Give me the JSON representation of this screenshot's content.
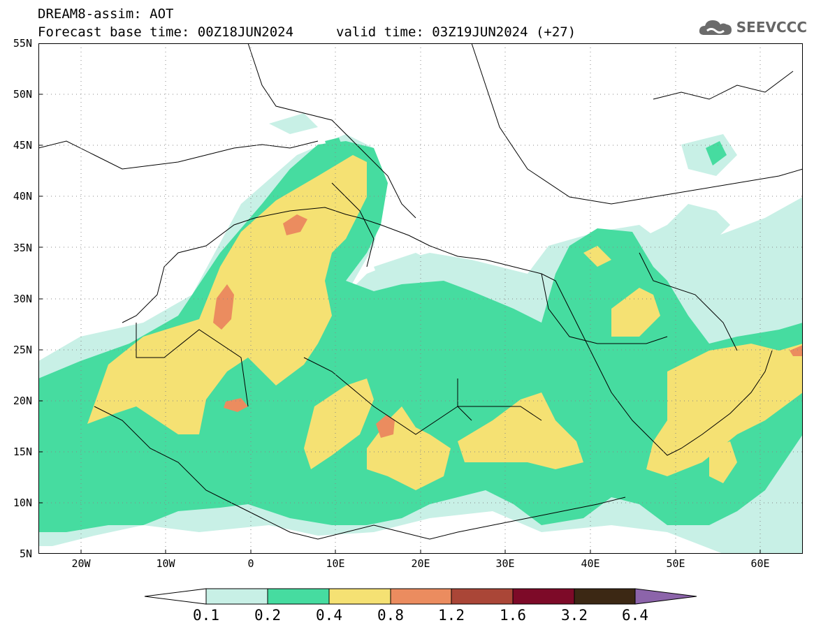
{
  "header": {
    "line1": "DREAM8-assim: AOT",
    "line2": "Forecast base time: 00Z18JUN2024",
    "valid": "valid time: 03Z19JUN2024 (+27)"
  },
  "logo": {
    "text": "SEEVCCC",
    "icon": "cloud-icon"
  },
  "map": {
    "lon_range": [
      -25,
      65
    ],
    "lat_range": [
      5,
      55
    ],
    "grid": true,
    "lat_ticks": [
      "55N",
      "50N",
      "45N",
      "40N",
      "35N",
      "30N",
      "25N",
      "20N",
      "15N",
      "10N",
      "5N"
    ],
    "lon_ticks": [
      "20W",
      "10W",
      "0",
      "10E",
      "20E",
      "30E",
      "40E",
      "50E",
      "60E"
    ]
  },
  "colorbar": {
    "labels": [
      "0.1",
      "0.2",
      "0.4",
      "0.8",
      "1.2",
      "1.6",
      "3.2",
      "6.4"
    ],
    "colors": {
      "lt01": "#ffffff",
      "c01_02": "#c8f0e6",
      "c02_04": "#46dca0",
      "c04_08": "#f5e173",
      "c08_12": "#eb8c5f",
      "c12_16": "#aa4637",
      "c16_32": "#7d0a28",
      "c32_64": "#3c2814",
      "gt64": "#8c64aa"
    }
  }
}
